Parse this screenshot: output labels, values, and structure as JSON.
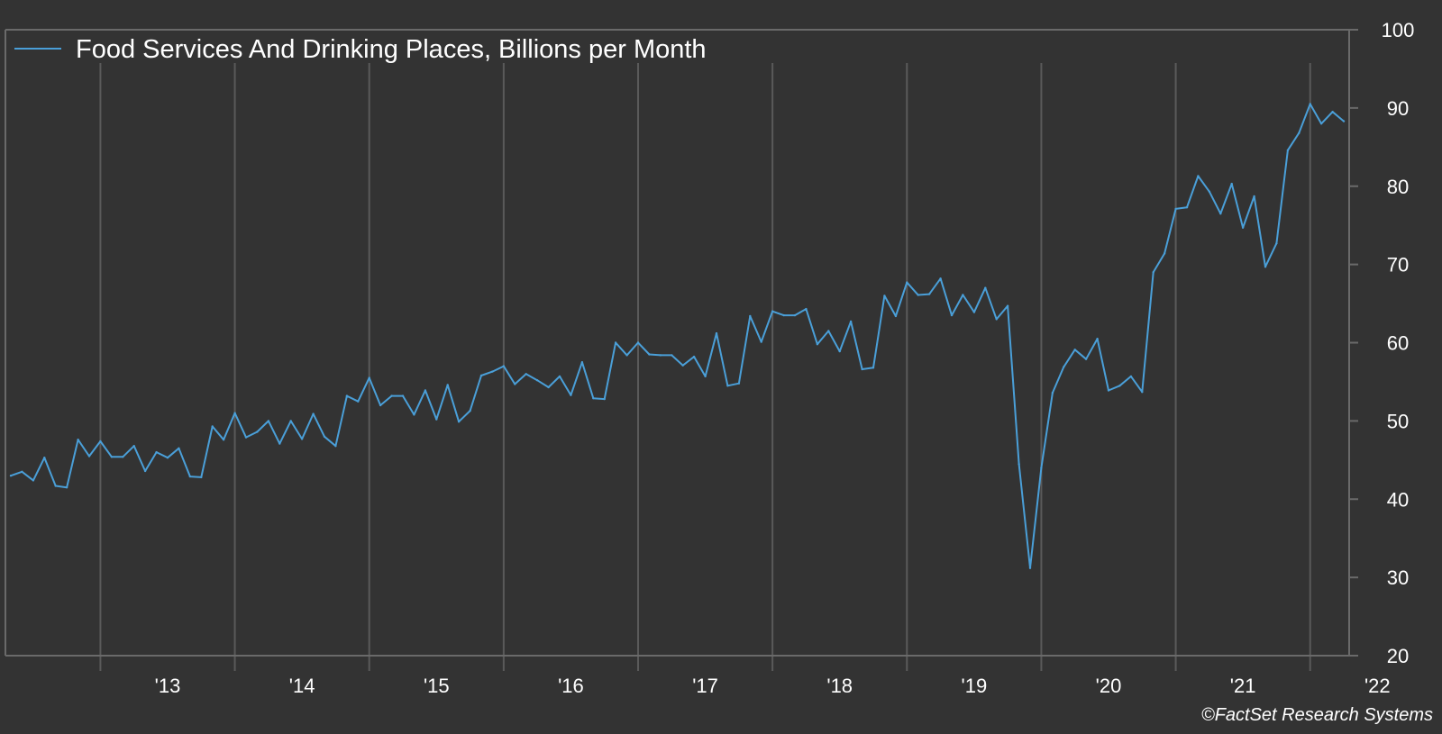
{
  "colors": {
    "background": "#333333",
    "line": "#4a9fd8",
    "grid": "#5a5a5a",
    "axis": "#6a6a6a",
    "text": "#ffffff"
  },
  "credit": "©FactSet Research Systems",
  "chart_data": {
    "type": "line",
    "title": "",
    "xlabel": "",
    "ylabel": "",
    "ylim": [
      20,
      100
    ],
    "y_ticks": [
      20,
      30,
      40,
      50,
      60,
      70,
      80,
      90,
      100
    ],
    "x_range": [
      "2012-05",
      "2022-04"
    ],
    "x_tick_labels": [
      {
        "label": "'13",
        "year": 2013
      },
      {
        "label": "'14",
        "year": 2014
      },
      {
        "label": "'15",
        "year": 2015
      },
      {
        "label": "'16",
        "year": 2016
      },
      {
        "label": "'17",
        "year": 2017
      },
      {
        "label": "'18",
        "year": 2018
      },
      {
        "label": "'19",
        "year": 2019
      },
      {
        "label": "'20",
        "year": 2020
      },
      {
        "label": "'21",
        "year": 2021
      },
      {
        "label": "'22",
        "year": 2022
      }
    ],
    "grid": "vertical lines at year boundaries",
    "legend_position": "top-left",
    "series": [
      {
        "name": "Food Services And Drinking Places, Billions per Month",
        "start": "2012-05",
        "frequency": "monthly",
        "values": [
          43.0,
          43.5,
          42.4,
          45.3,
          41.7,
          41.5,
          47.6,
          45.5,
          47.4,
          45.4,
          45.4,
          46.8,
          43.6,
          46.0,
          45.3,
          46.5,
          42.9,
          42.8,
          49.3,
          47.6,
          51.0,
          47.9,
          48.6,
          50.0,
          47.1,
          50.0,
          47.7,
          50.9,
          48.0,
          46.8,
          53.2,
          52.5,
          55.5,
          52.0,
          53.2,
          53.2,
          50.8,
          53.9,
          50.2,
          54.6,
          49.9,
          51.3,
          55.8,
          56.3,
          57.0,
          54.7,
          56.0,
          55.2,
          54.3,
          55.7,
          53.3,
          57.5,
          52.9,
          52.8,
          60.0,
          58.4,
          60.0,
          58.5,
          58.4,
          58.4,
          57.1,
          58.2,
          55.7,
          61.2,
          54.5,
          54.8,
          63.4,
          60.1,
          64.0,
          63.5,
          63.5,
          64.3,
          59.8,
          61.5,
          58.9,
          62.7,
          56.6,
          56.8,
          66.0,
          63.4,
          67.7,
          66.1,
          66.2,
          68.2,
          63.5,
          66.1,
          63.9,
          67.0,
          63.0,
          64.7,
          44.5,
          31.2,
          44.0,
          53.6,
          56.9,
          59.1,
          57.9,
          60.5,
          53.9,
          54.5,
          55.7,
          53.7,
          69.0,
          71.4,
          77.1,
          77.3,
          81.3,
          79.3,
          76.5,
          80.3,
          74.7,
          78.7,
          69.7,
          72.7,
          84.6,
          86.8,
          90.5,
          88.0,
          89.5,
          88.3
        ]
      }
    ]
  }
}
